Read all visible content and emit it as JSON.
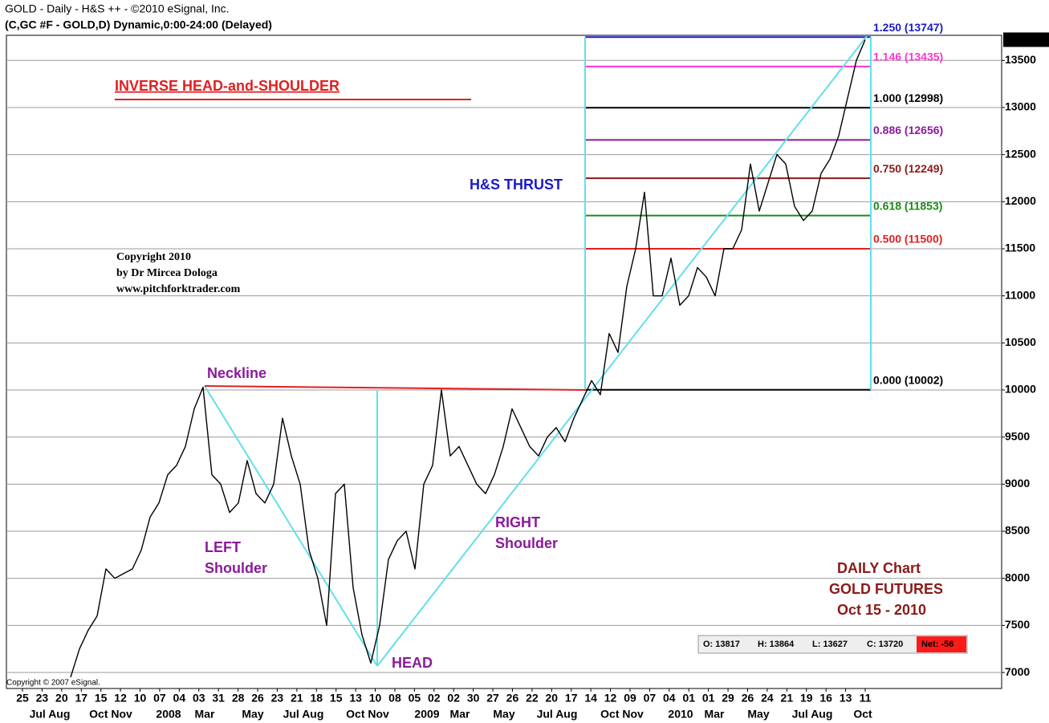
{
  "chart_data": {
    "type": "line",
    "title": "GOLD -  Daily - H&S ++ - ©2010 eSignal, Inc.",
    "subtitle": "(C,GC #F - GOLD,D) Dynamic,0:00-24:00 (Delayed)",
    "ylim": [
      6830,
      13903
    ],
    "yticks": [
      7000,
      7500,
      8000,
      8500,
      9000,
      9500,
      10000,
      10500,
      11000,
      11500,
      12000,
      12500,
      13000,
      13500
    ],
    "grid": true,
    "series": [
      {
        "name": "GOLD",
        "color": "#000000",
        "values": [
          6950,
          7250,
          7450,
          7600,
          8100,
          8000,
          8050,
          8100,
          8300,
          8650,
          8800,
          9100,
          9200,
          9400,
          9800,
          10030,
          9100,
          9000,
          8700,
          8800,
          9250,
          8900,
          8800,
          9000,
          9700,
          9300,
          9000,
          8300,
          8000,
          7500,
          8900,
          9000,
          7900,
          7400,
          7100,
          7500,
          8200,
          8400,
          8500,
          8100,
          9000,
          9200,
          10000,
          9300,
          9400,
          9200,
          9000,
          8900,
          9100,
          9400,
          9800,
          9600,
          9400,
          9300,
          9500,
          9600,
          9450,
          9700,
          9900,
          10100,
          9950,
          10600,
          10400,
          11100,
          11500,
          12100,
          11000,
          11000,
          11400,
          10900,
          11000,
          11300,
          11200,
          11000,
          11500,
          11500,
          11700,
          12400,
          11900,
          12200,
          12500,
          12400,
          11950,
          11800,
          11900,
          12300,
          12450,
          12700,
          13100,
          13500,
          13720
        ]
      }
    ],
    "last_price": 13720,
    "fib_levels": [
      {
        "value": 13747,
        "label": "1.250 (13747)",
        "color": "#1a1acc"
      },
      {
        "value": 13435,
        "label": "1.146 (13435)",
        "color": "#ff33cc"
      },
      {
        "value": 12998,
        "label": "1.000 (12998)",
        "color": "#000000"
      },
      {
        "value": 12656,
        "label": "0.886 (12656)",
        "color": "#8a1a9a"
      },
      {
        "value": 12249,
        "label": "0.750 (12249)",
        "color": "#8b1a1a"
      },
      {
        "value": 11853,
        "label": "0.618 (11853)",
        "color": "#1a8a1a"
      },
      {
        "value": 11500,
        "label": "0.500 (11500)",
        "color": "#e02020"
      },
      {
        "value": 10002,
        "label": "0.000 (10002)",
        "color": "#000000"
      }
    ],
    "xtick_days": [
      "25",
      "23",
      "20",
      "17",
      "15",
      "12",
      "10",
      "07",
      "04",
      "03",
      "31",
      "28",
      "26",
      "23",
      "21",
      "18",
      "15",
      "13",
      "10",
      "08",
      "05",
      "02",
      "02",
      "30",
      "27",
      "26",
      "22",
      "20",
      "17",
      "14",
      "12",
      "09",
      "07",
      "04",
      "01",
      "01",
      "29",
      "26",
      "24",
      "21",
      "19",
      "16",
      "13",
      "11"
    ],
    "xtick_months": [
      "Jul Aug",
      "Oct Nov",
      "2008",
      "Mar",
      "May",
      "Jul Aug",
      "Oct Nov",
      "2009",
      "Mar",
      "May",
      "Jul Aug",
      "Oct Nov",
      "2010",
      "Mar",
      "May",
      "Jul Aug",
      "Oct"
    ],
    "ohlc": [
      "O: 13817",
      "H: 13864",
      "L: 13627",
      "C: 13720",
      "Net: -56"
    ],
    "annotations": {
      "pattern": "INVERSE HEAD-and-SHOULDER",
      "thrust": "H&S THRUST",
      "copyright": [
        "Copyright 2010",
        "by Dr Mircea Dologa",
        "www.pitchforktrader.com"
      ],
      "neckline": "Neckline",
      "left_shoulder": [
        "LEFT",
        "Shoulder"
      ],
      "right_shoulder": [
        "RIGHT",
        "Shoulder"
      ],
      "head": "HEAD",
      "daily": [
        "DAILY Chart",
        "GOLD FUTURES",
        "Oct 15 - 2010"
      ],
      "source": "Copyright © 2007 eSignal."
    }
  }
}
